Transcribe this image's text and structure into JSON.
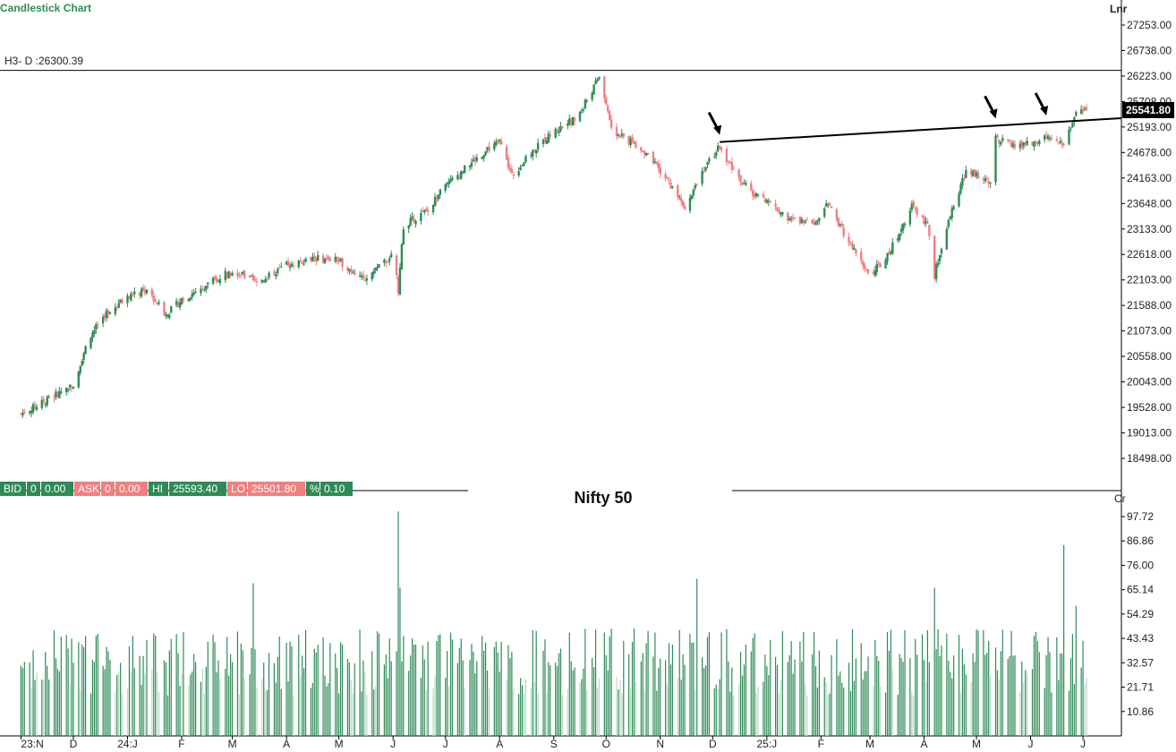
{
  "header": {
    "chart_type_label": "Candlestick Chart",
    "scale_label": "Lnr",
    "h3_label": "H3- D :26300.39",
    "center_title": "Nifty 50",
    "volume_unit": "Cr"
  },
  "quote_bar": [
    {
      "key": "BID",
      "label": "BID",
      "qty": "0",
      "price": "0.00",
      "color": "#2e8b57"
    },
    {
      "key": "ASK",
      "label": "ASK",
      "qty": "0",
      "price": "0.00",
      "color": "#f08080"
    },
    {
      "key": "HI",
      "label": "HI",
      "price": "25593.40",
      "color": "#2e8b57"
    },
    {
      "key": "LO",
      "label": "LO",
      "price": "25501.80",
      "color": "#f08080"
    },
    {
      "key": "PCT",
      "label": "%",
      "price": "0.10",
      "color": "#2e8b57"
    }
  ],
  "colors": {
    "up": "#2e8b57",
    "down": "#f08080",
    "volume_up": "#2e8b57",
    "volume_up_light": "#b9d9c6",
    "axis": "#000000",
    "last_price_bg": "#000000"
  },
  "chart_data": [
    {
      "type": "candlestick",
      "name": "Nifty 50",
      "title": "Nifty 50",
      "scale": "linear",
      "ylim": [
        18000,
        27600
      ],
      "y_ticks": [
        "27253.00",
        "26738.00",
        "26223.00",
        "25708.00",
        "25193.00",
        "24678.00",
        "24163.00",
        "23648.00",
        "23133.00",
        "22618.00",
        "22103.00",
        "21588.00",
        "21073.00",
        "20558.00",
        "20043.00",
        "19528.00",
        "19013.00",
        "18498.00"
      ],
      "last_price": "25541.80",
      "reference_level": {
        "label": "H3- D",
        "value": 26300.39
      },
      "trendline": {
        "from": {
          "date": "2024-12-05",
          "value": 24890
        },
        "to": {
          "date": "2025-07-03",
          "value": 25330
        }
      },
      "arrows": [
        "2024-12-05",
        "2025-05-12",
        "2025-06-10"
      ],
      "x_ticks": [
        {
          "label": "23:N",
          "date": "2023-11-01"
        },
        {
          "label": "D",
          "date": "2023-12-01"
        },
        {
          "label": "24:J",
          "date": "2024-01-01"
        },
        {
          "label": "F",
          "date": "2024-02-01"
        },
        {
          "label": "M",
          "date": "2024-03-01"
        },
        {
          "label": "A",
          "date": "2024-04-01"
        },
        {
          "label": "M",
          "date": "2024-05-01"
        },
        {
          "label": "J",
          "date": "2024-06-01"
        },
        {
          "label": "J",
          "date": "2024-07-01"
        },
        {
          "label": "A",
          "date": "2024-08-01"
        },
        {
          "label": "S",
          "date": "2024-09-01"
        },
        {
          "label": "O",
          "date": "2024-10-01"
        },
        {
          "label": "N",
          "date": "2024-11-01"
        },
        {
          "label": "D",
          "date": "2024-12-01"
        },
        {
          "label": "25:J",
          "date": "2025-01-01"
        },
        {
          "label": "F",
          "date": "2025-02-01"
        },
        {
          "label": "M",
          "date": "2025-03-01"
        },
        {
          "label": "A",
          "date": "2025-04-01"
        },
        {
          "label": "M",
          "date": "2025-05-01"
        },
        {
          "label": "J",
          "date": "2025-06-01"
        },
        {
          "label": "J",
          "date": "2025-07-01"
        }
      ],
      "closes_by_date": [
        [
          "2023-11-01",
          19400
        ],
        [
          "2023-11-15",
          19650
        ],
        [
          "2023-12-01",
          20000
        ],
        [
          "2023-12-10",
          20950
        ],
        [
          "2023-12-20",
          21450
        ],
        [
          "2024-01-01",
          21750
        ],
        [
          "2024-01-12",
          21900
        ],
        [
          "2024-01-23",
          21400
        ],
        [
          "2024-02-01",
          21700
        ],
        [
          "2024-02-15",
          22000
        ],
        [
          "2024-03-01",
          22300
        ],
        [
          "2024-03-15",
          22050
        ],
        [
          "2024-04-01",
          22400
        ],
        [
          "2024-04-15",
          22550
        ],
        [
          "2024-05-01",
          22500
        ],
        [
          "2024-05-15",
          22100
        ],
        [
          "2024-06-01",
          22600
        ],
        [
          "2024-06-04",
          21900
        ],
        [
          "2024-06-07",
          23200
        ],
        [
          "2024-06-20",
          23500
        ],
        [
          "2024-07-01",
          24000
        ],
        [
          "2024-07-20",
          24600
        ],
        [
          "2024-08-01",
          24900
        ],
        [
          "2024-08-08",
          24200
        ],
        [
          "2024-08-20",
          24700
        ],
        [
          "2024-09-01",
          25100
        ],
        [
          "2024-09-15",
          25400
        ],
        [
          "2024-09-27",
          26200
        ],
        [
          "2024-10-05",
          25100
        ],
        [
          "2024-10-20",
          24800
        ],
        [
          "2024-11-01",
          24300
        ],
        [
          "2024-11-15",
          23600
        ],
        [
          "2024-11-25",
          24300
        ],
        [
          "2024-12-05",
          24800
        ],
        [
          "2024-12-15",
          24200
        ],
        [
          "2024-12-25",
          23800
        ],
        [
          "2025-01-01",
          23700
        ],
        [
          "2025-01-15",
          23300
        ],
        [
          "2025-01-30",
          23300
        ],
        [
          "2025-02-04",
          23700
        ],
        [
          "2025-02-15",
          23000
        ],
        [
          "2025-02-28",
          22200
        ],
        [
          "2025-03-10",
          22500
        ],
        [
          "2025-03-25",
          23600
        ],
        [
          "2025-04-03",
          23200
        ],
        [
          "2025-04-07",
          22200
        ],
        [
          "2025-04-15",
          23300
        ],
        [
          "2025-04-25",
          24300
        ],
        [
          "2025-05-09",
          24100
        ],
        [
          "2025-05-12",
          24950
        ],
        [
          "2025-05-25",
          24800
        ],
        [
          "2025-06-05",
          24900
        ],
        [
          "2025-06-12",
          25000
        ],
        [
          "2025-06-20",
          24800
        ],
        [
          "2025-06-27",
          25550
        ],
        [
          "2025-07-03",
          25542
        ]
      ]
    },
    {
      "type": "bar",
      "name": "Volume",
      "unit": "Cr",
      "ylim": [
        0,
        104
      ],
      "y_ticks": [
        "97.72",
        "86.86",
        "76.00",
        "65.14",
        "54.29",
        "43.43",
        "32.57",
        "21.71",
        "10.86"
      ],
      "spikes": [
        {
          "date": "2024-06-04",
          "value": 100
        },
        {
          "date": "2024-06-05",
          "value": 66
        },
        {
          "date": "2024-03-13",
          "value": 68
        },
        {
          "date": "2024-11-22",
          "value": 70
        },
        {
          "date": "2025-04-07",
          "value": 66
        },
        {
          "date": "2025-06-20",
          "value": 85
        },
        {
          "date": "2025-06-27",
          "value": 58
        }
      ],
      "typical_range": [
        18,
        48
      ]
    }
  ]
}
